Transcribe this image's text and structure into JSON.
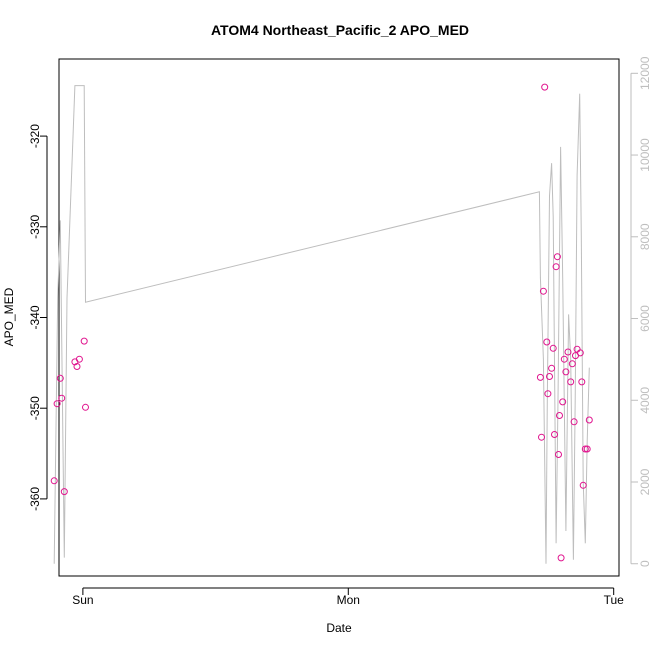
{
  "chart_data": {
    "type": "scatter",
    "title": "ATOM4 Northeast_Pacific_2 APO_MED",
    "xlabel": "Date",
    "ylabel": "APO_MED",
    "x_unit": "days",
    "xlim": [
      -0.09,
      2.02
    ],
    "ylim": [
      -368.5,
      -311.5
    ],
    "x_ticks": [
      {
        "value": 0,
        "label": "Sun"
      },
      {
        "value": 1,
        "label": "Mon"
      },
      {
        "value": 2,
        "label": "Tue"
      }
    ],
    "y_ticks": [
      -360,
      -350,
      -340,
      -330,
      -320
    ],
    "y2_ticks": [
      0,
      2000,
      4000,
      6000,
      8000,
      10000,
      12000
    ],
    "y2lim": [
      -300,
      12350
    ],
    "grid": false,
    "colors": {
      "points": "#e0148e",
      "line": "#bebebe",
      "axis": "#000000",
      "right_axis": "#bebebe"
    },
    "series": [
      {
        "type": "points",
        "axis": "left",
        "points": [
          {
            "x": -0.108,
            "y": -358.0
          },
          {
            "x": -0.097,
            "y": -349.5
          },
          {
            "x": -0.085,
            "y": -346.7
          },
          {
            "x": -0.08,
            "y": -348.9
          },
          {
            "x": -0.07,
            "y": -359.2
          },
          {
            "x": -0.03,
            "y": -344.9
          },
          {
            "x": -0.022,
            "y": -345.4
          },
          {
            "x": -0.013,
            "y": -344.6
          },
          {
            "x": 0.005,
            "y": -342.6
          },
          {
            "x": 0.01,
            "y": -349.9
          },
          {
            "x": 1.724,
            "y": -346.6
          },
          {
            "x": 1.728,
            "y": -353.2
          },
          {
            "x": 1.735,
            "y": -337.1
          },
          {
            "x": 1.74,
            "y": -314.6
          },
          {
            "x": 1.748,
            "y": -342.7
          },
          {
            "x": 1.752,
            "y": -348.4
          },
          {
            "x": 1.758,
            "y": -346.5
          },
          {
            "x": 1.766,
            "y": -345.6
          },
          {
            "x": 1.772,
            "y": -343.4
          },
          {
            "x": 1.777,
            "y": -352.9
          },
          {
            "x": 1.783,
            "y": -334.4
          },
          {
            "x": 1.788,
            "y": -333.3
          },
          {
            "x": 1.792,
            "y": -355.1
          },
          {
            "x": 1.796,
            "y": -350.8
          },
          {
            "x": 1.802,
            "y": -366.5
          },
          {
            "x": 1.808,
            "y": -349.3
          },
          {
            "x": 1.814,
            "y": -344.6
          },
          {
            "x": 1.82,
            "y": -346.0
          },
          {
            "x": 1.828,
            "y": -343.8
          },
          {
            "x": 1.838,
            "y": -347.1
          },
          {
            "x": 1.844,
            "y": -345.1
          },
          {
            "x": 1.851,
            "y": -351.5
          },
          {
            "x": 1.856,
            "y": -344.2
          },
          {
            "x": 1.862,
            "y": -343.5
          },
          {
            "x": 1.874,
            "y": -343.9
          },
          {
            "x": 1.88,
            "y": -347.1
          },
          {
            "x": 1.885,
            "y": -358.5
          },
          {
            "x": 1.893,
            "y": -354.5
          },
          {
            "x": 1.9,
            "y": -354.5
          },
          {
            "x": 1.908,
            "y": -351.3
          }
        ]
      },
      {
        "type": "line",
        "axis": "right",
        "points": [
          {
            "x": -0.108,
            "y": 0
          },
          {
            "x": -0.095,
            "y": 6500
          },
          {
            "x": -0.085,
            "y": 8400
          },
          {
            "x": -0.07,
            "y": 150
          },
          {
            "x": -0.06,
            "y": 6500
          },
          {
            "x": -0.03,
            "y": 11700
          },
          {
            "x": 0.0,
            "y": 11700
          },
          {
            "x": 0.005,
            "y": 11700
          },
          {
            "x": 0.01,
            "y": 6400
          },
          {
            "x": 1.72,
            "y": 9100
          },
          {
            "x": 1.724,
            "y": 7000
          },
          {
            "x": 1.735,
            "y": 5000
          },
          {
            "x": 1.745,
            "y": 0
          },
          {
            "x": 1.75,
            "y": 4000
          },
          {
            "x": 1.758,
            "y": 9000
          },
          {
            "x": 1.766,
            "y": 9800
          },
          {
            "x": 1.772,
            "y": 8500
          },
          {
            "x": 1.783,
            "y": 500
          },
          {
            "x": 1.79,
            "y": 4000
          },
          {
            "x": 1.8,
            "y": 10200
          },
          {
            "x": 1.808,
            "y": 7000
          },
          {
            "x": 1.82,
            "y": 800
          },
          {
            "x": 1.83,
            "y": 6100
          },
          {
            "x": 1.838,
            "y": 5000
          },
          {
            "x": 1.848,
            "y": 100
          },
          {
            "x": 1.855,
            "y": 4000
          },
          {
            "x": 1.862,
            "y": 9500
          },
          {
            "x": 1.872,
            "y": 11500
          },
          {
            "x": 1.878,
            "y": 8000
          },
          {
            "x": 1.885,
            "y": 2000
          },
          {
            "x": 1.893,
            "y": 500
          },
          {
            "x": 1.9,
            "y": 3000
          },
          {
            "x": 1.908,
            "y": 4800
          }
        ]
      }
    ]
  }
}
